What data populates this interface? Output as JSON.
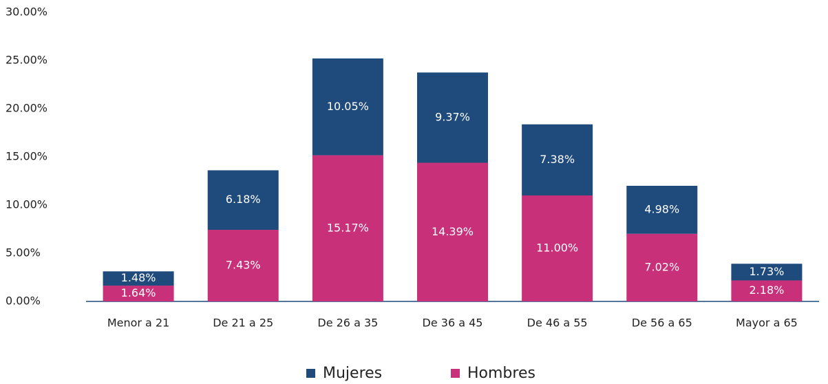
{
  "chart_data": {
    "type": "stacked_bar",
    "categories": [
      "Menor a 21",
      "De 21 a 25",
      "De 26 a 35",
      "De 36 a 45",
      "De 46 a 55",
      "De 56 a 65",
      "Mayor a 65"
    ],
    "series": [
      {
        "name": "Mujeres",
        "color": "#1f4a7c",
        "values": [
          1.48,
          6.18,
          10.05,
          9.37,
          7.38,
          4.98,
          1.73
        ],
        "value_labels": [
          "1.48%",
          "6.18%",
          "10.05%",
          "9.37%",
          "7.38%",
          "4.98%",
          "1.73%"
        ]
      },
      {
        "name": "Hombres",
        "color": "#c8307a",
        "values": [
          1.64,
          7.43,
          15.17,
          14.39,
          11.0,
          7.02,
          2.18
        ],
        "value_labels": [
          "1.64%",
          "7.43%",
          "15.17%",
          "14.39%",
          "11.00%",
          "7.02%",
          "2.18%"
        ]
      }
    ],
    "ylim": [
      0,
      30
    ],
    "yticks": [
      {
        "value": 0,
        "label": "0.00%"
      },
      {
        "value": 5,
        "label": "5.00%"
      },
      {
        "value": 10,
        "label": "10.00%"
      },
      {
        "value": 15,
        "label": "15.00%"
      },
      {
        "value": 20,
        "label": "20.00%"
      },
      {
        "value": 25,
        "label": "25.00%"
      },
      {
        "value": 30,
        "label": "30.00%"
      }
    ],
    "grid": false,
    "legend": "bottom"
  }
}
